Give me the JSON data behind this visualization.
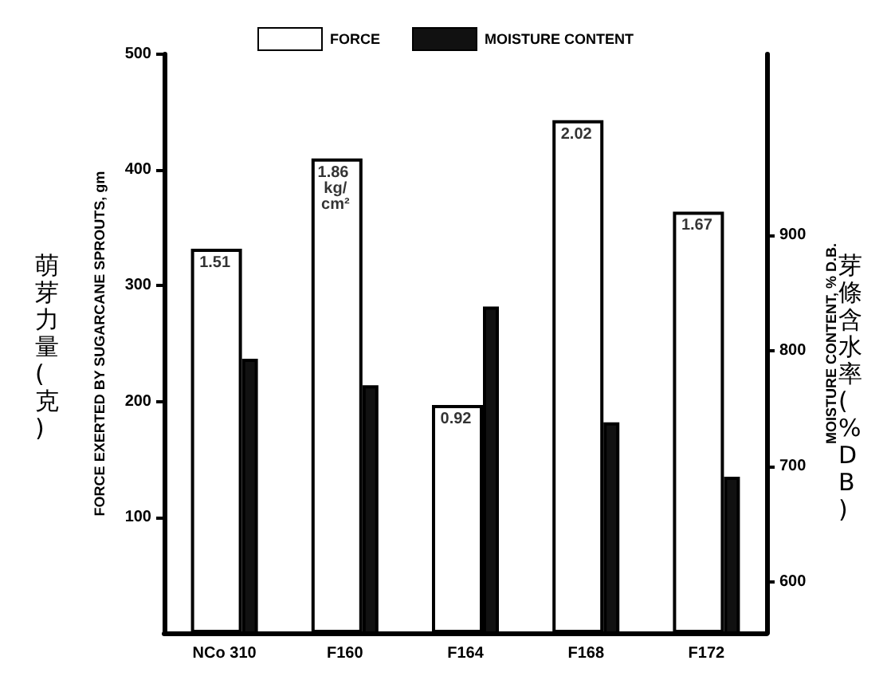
{
  "chart_data": {
    "type": "bar",
    "categories": [
      "NCo 310",
      "F160",
      "F164",
      "F168",
      "F172"
    ],
    "ylabel": "FORCE EXERTED BY SUGARCANE SPROUTS, gm",
    "y2label": "MOISTURE CONTENT, % D.B.",
    "annotations": [
      "萌芽力量(克)",
      "芽條含水率(%DB)",
      {
        "text": "1.51",
        "x": "NCo 310",
        "y": 332
      },
      {
        "text": "1.86 kg/cm²",
        "x": "F160",
        "y": 410
      },
      {
        "text": "0.92",
        "x": "F164",
        "y": 197
      },
      {
        "text": "2.02",
        "x": "F168",
        "y": 443
      },
      {
        "text": "1.67",
        "x": "F172",
        "y": 364
      }
    ],
    "series": [
      {
        "name": "FORCE",
        "color": "#ffffff",
        "values": [
          332,
          410,
          197,
          443,
          364
        ]
      },
      {
        "name": "MOISTURE CONTENT",
        "color": "#111111",
        "axis": "y2",
        "values": [
          793,
          770,
          838,
          738,
          691
        ]
      }
    ],
    "ylim": [
      0,
      500
    ],
    "yticks": [
      100,
      200,
      300,
      400,
      500
    ],
    "y2lim": [
      556,
      1056
    ],
    "y2ticks": [
      600,
      700,
      800,
      900
    ],
    "legend": "top",
    "grid": false
  }
}
